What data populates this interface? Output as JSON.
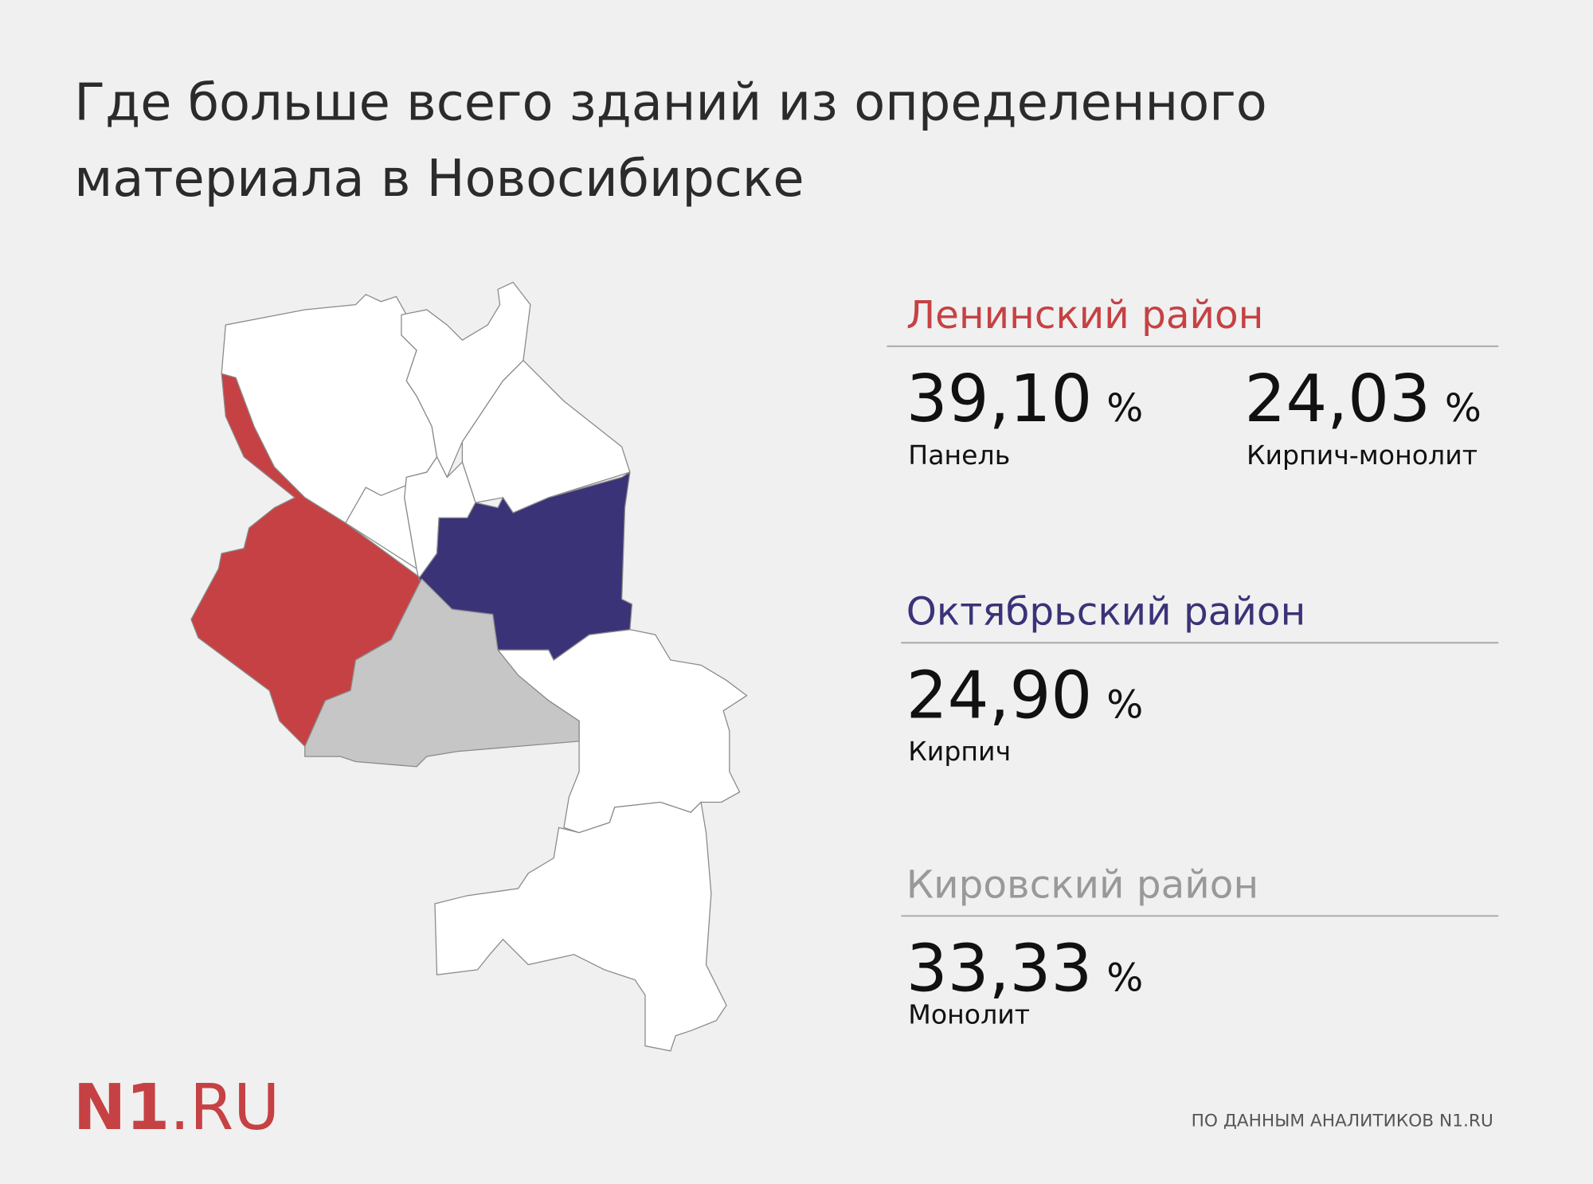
{
  "title": [
    "Где больше всего зданий из определенного",
    "материала в Новосибирске"
  ],
  "districts": [
    {
      "name": "Ленинский район",
      "color": "#c64143",
      "stats": [
        {
          "value": "39,10",
          "unit": "%",
          "material": "Панель"
        },
        {
          "value": "24,03",
          "unit": "%",
          "material": "Кирпич-монолит"
        }
      ]
    },
    {
      "name": "Октябрьский район",
      "color": "#3a3378",
      "stats": [
        {
          "value": "24,90",
          "unit": "%",
          "material": "Кирпич"
        }
      ]
    },
    {
      "name": "Кировский район",
      "color": "#c6c6c6",
      "stats": [
        {
          "value": "33,33",
          "unit": "%",
          "material": "Монолит"
        }
      ]
    }
  ],
  "logo": {
    "bold": "N1",
    "rest": ".RU"
  },
  "source": "ПО ДАННЫМ АНАЛИТИКОВ N1.RU"
}
